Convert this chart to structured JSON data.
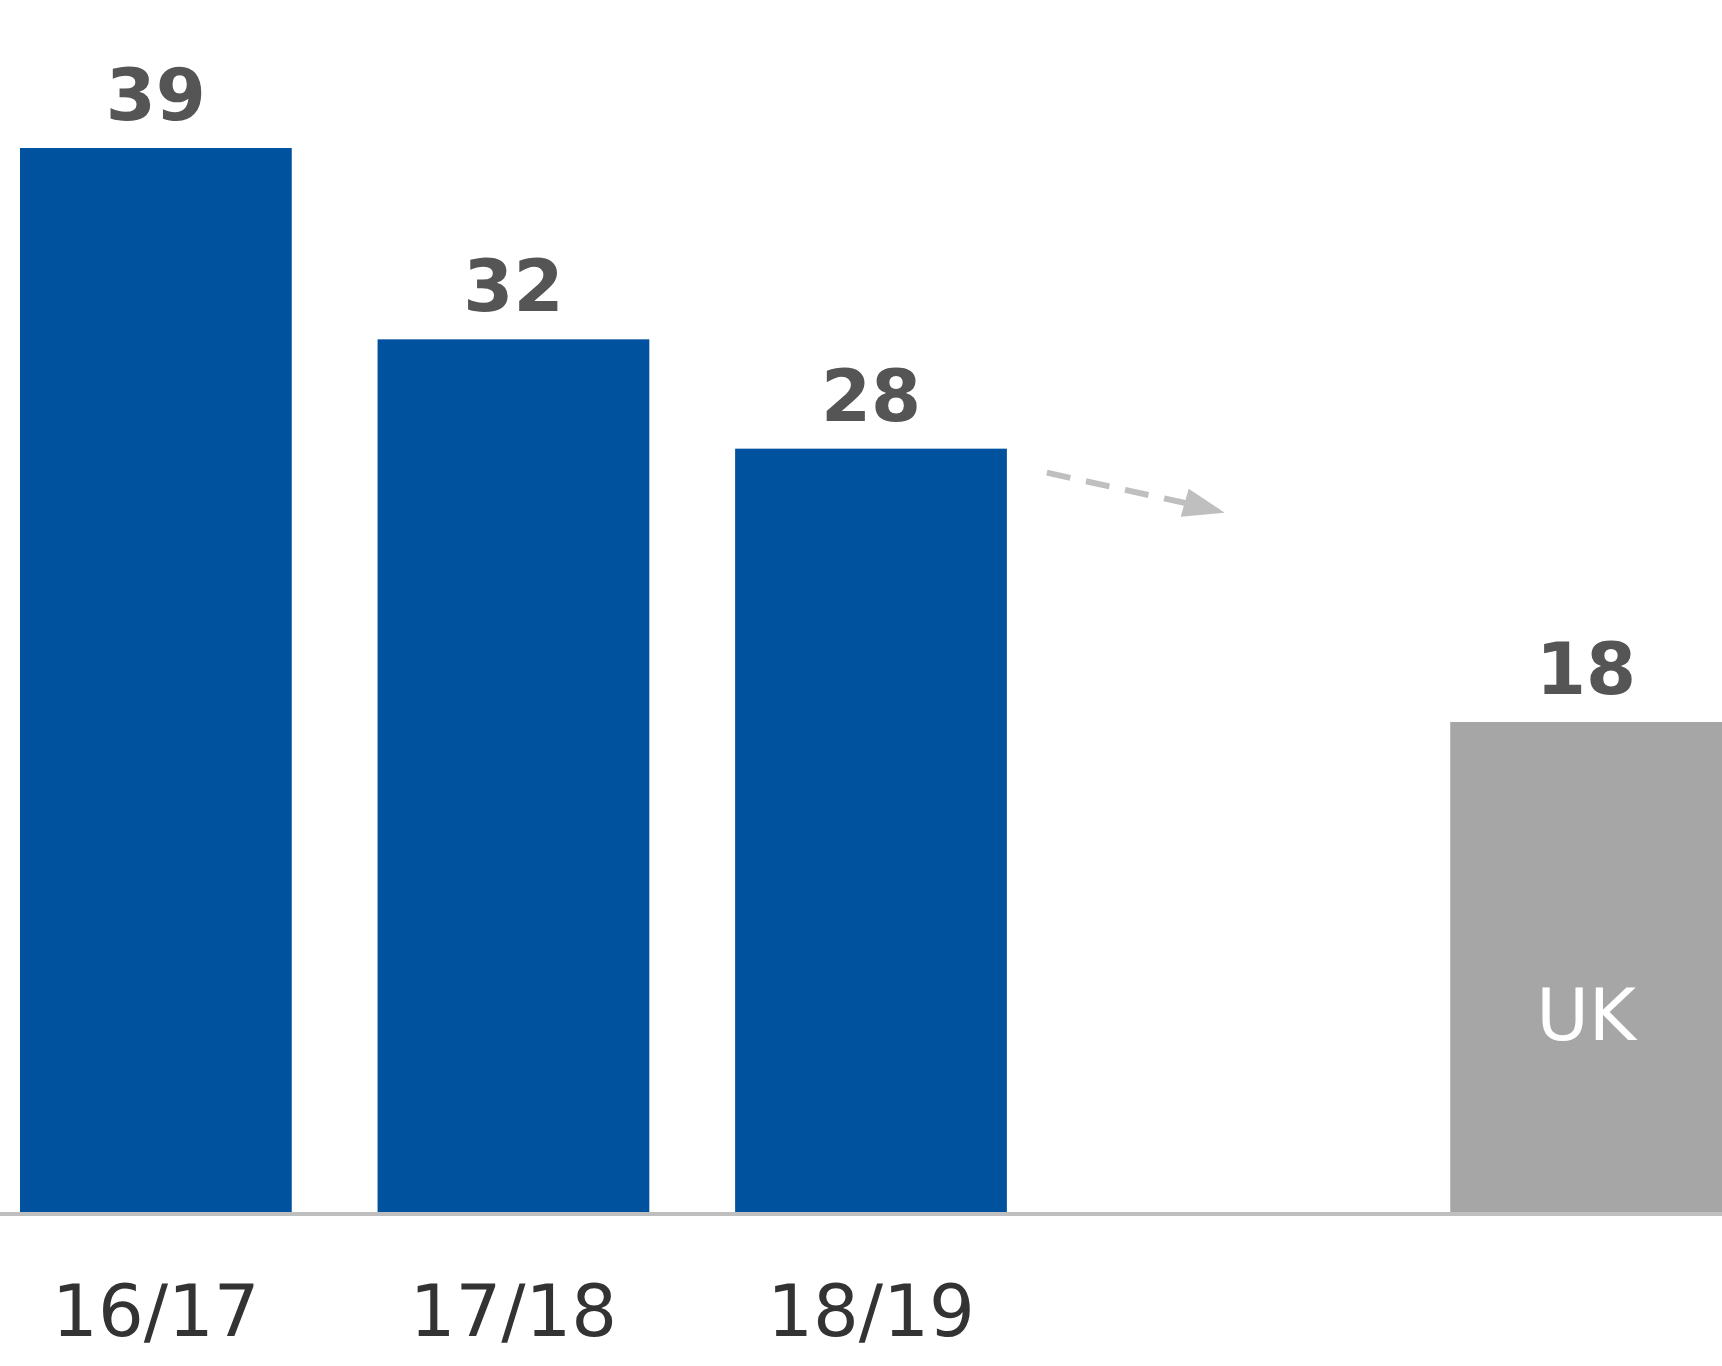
{
  "chart_data": {
    "type": "bar",
    "categories": [
      "16/17",
      "17/18",
      "18/19",
      null,
      "UK"
    ],
    "values": [
      39,
      32,
      28,
      null,
      18
    ],
    "colors": [
      "#00519e",
      "#00519e",
      "#00519e",
      null,
      "#a6a6a6"
    ],
    "data_labels": true
  }
}
